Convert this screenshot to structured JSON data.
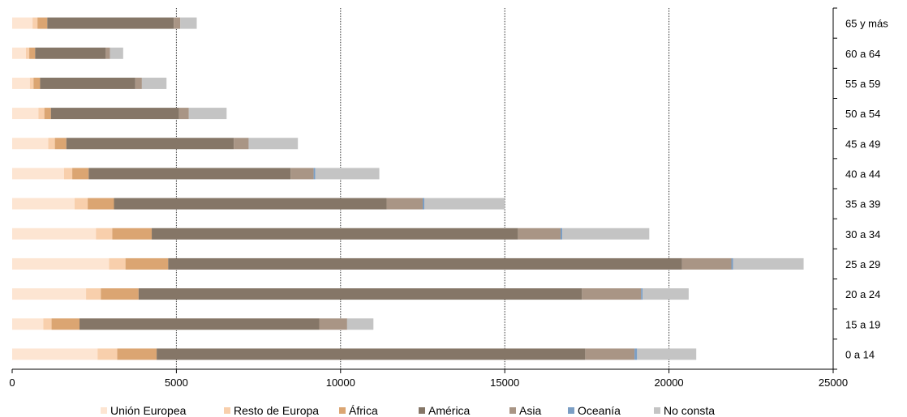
{
  "chart_data": {
    "type": "bar",
    "orientation": "horizontal",
    "stacked": true,
    "title": "",
    "xlabel": "",
    "ylabel": "",
    "xlim": [
      0,
      25000
    ],
    "x_ticks": [
      0,
      5000,
      10000,
      15000,
      20000,
      25000
    ],
    "grid": "vertical dotted",
    "category_axis_position": "right",
    "legend_placement": "bottom",
    "categories": [
      "65 y más",
      "60 a 64",
      "55 a 59",
      "50 a 54",
      "45 a 49",
      "40 a 44",
      "35 a 39",
      "30 a 34",
      "25 a 29",
      "20 a 24",
      "15 a 19",
      "0 a 14"
    ],
    "series": [
      {
        "name": "Unión Europea",
        "color": "#fde5d2",
        "values": [
          620,
          420,
          540,
          800,
          1100,
          1580,
          1900,
          2550,
          2950,
          2250,
          950,
          2600
        ]
      },
      {
        "name": "Resto de Europa",
        "color": "#f8cfac",
        "values": [
          150,
          100,
          110,
          180,
          200,
          250,
          400,
          500,
          500,
          450,
          250,
          600
        ]
      },
      {
        "name": "África",
        "color": "#dba572",
        "values": [
          300,
          180,
          200,
          200,
          350,
          500,
          800,
          1200,
          1300,
          1150,
          850,
          1200
        ]
      },
      {
        "name": "América",
        "color": "#857667",
        "values": [
          3850,
          2150,
          2900,
          3900,
          5100,
          6150,
          8300,
          11150,
          15650,
          13500,
          7300,
          13050
        ]
      },
      {
        "name": "Asia",
        "color": "#a99585",
        "values": [
          200,
          130,
          200,
          300,
          450,
          700,
          1100,
          1300,
          1500,
          1800,
          850,
          1500
        ]
      },
      {
        "name": "Oceanía",
        "color": "#7b9ec4",
        "values": [
          0,
          0,
          0,
          0,
          0,
          50,
          50,
          50,
          50,
          50,
          0,
          80
        ]
      },
      {
        "name": "No consta",
        "color": "#c4c4c4",
        "values": [
          500,
          400,
          750,
          1150,
          1500,
          1950,
          2450,
          2650,
          2150,
          1400,
          800,
          1800
        ]
      }
    ]
  }
}
